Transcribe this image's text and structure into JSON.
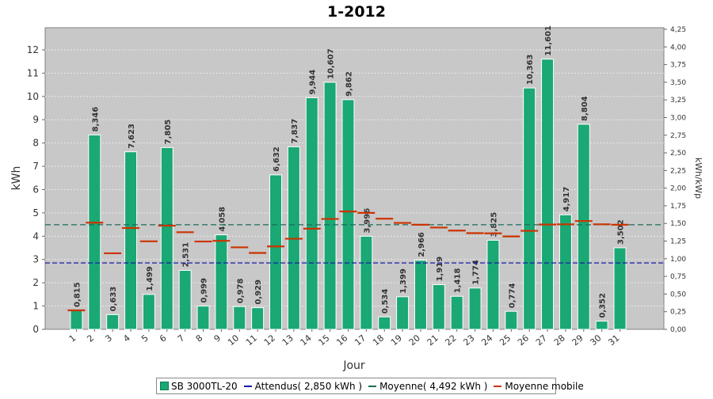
{
  "chart_data": {
    "type": "bar",
    "title": "1-2012",
    "xlabel": "Jour",
    "ylabel": "kWh",
    "y2label": "kWh/kWp",
    "categories": [
      "1",
      "2",
      "3",
      "4",
      "5",
      "6",
      "7",
      "8",
      "9",
      "10",
      "11",
      "12",
      "13",
      "14",
      "15",
      "16",
      "17",
      "18",
      "19",
      "20",
      "21",
      "22",
      "23",
      "24",
      "25",
      "26",
      "27",
      "28",
      "29",
      "30",
      "31"
    ],
    "series": [
      {
        "name": "SB 3000TL-20",
        "kind": "bar",
        "values": [
          0.815,
          8.346,
          0.633,
          7.623,
          1.499,
          7.805,
          2.531,
          0.999,
          4.058,
          0.978,
          0.929,
          6.632,
          7.837,
          9.944,
          10.607,
          9.862,
          3.996,
          0.534,
          1.399,
          2.966,
          1.919,
          1.418,
          1.774,
          3.825,
          0.774,
          10.363,
          11.601,
          4.917,
          8.804,
          0.352,
          3.502
        ],
        "labels": [
          "0,815",
          "8,346",
          "0,633",
          "7,623",
          "1,499",
          "7,805",
          "2,531",
          "0,999",
          "4,058",
          "0,978",
          "0,929",
          "6,632",
          "7,837",
          "9,944",
          "10,607",
          "9,862",
          "3,996",
          "0,534",
          "1,399",
          "2,966",
          "1,919",
          "1,418",
          "1,774",
          "3,825",
          "0,774",
          "10,363",
          "11,601",
          "4,917",
          "8,804",
          "0,352",
          "3,502"
        ],
        "color": "#1aa874"
      },
      {
        "name": "Attendus( 2,850 kWh )",
        "kind": "hline",
        "value": 2.85,
        "color": "#1a1aa8"
      },
      {
        "name": "Moyenne( 4,492 kWh )",
        "kind": "hline",
        "value": 4.492,
        "color": "#1a6b5a"
      },
      {
        "name": "Moyenne mobile",
        "kind": "marker",
        "values": [
          0.815,
          4.58,
          3.265,
          4.35,
          3.78,
          4.45,
          4.17,
          3.77,
          3.8,
          3.52,
          3.28,
          3.56,
          3.89,
          4.32,
          4.74,
          5.06,
          5.0,
          4.75,
          4.57,
          4.49,
          4.37,
          4.24,
          4.13,
          4.12,
          3.99,
          4.23,
          4.5,
          4.51,
          4.65,
          4.51,
          4.49
        ],
        "color": "#cc3300"
      }
    ],
    "ylim": [
      0,
      13
    ],
    "yticks": [
      "0",
      "1",
      "2",
      "3",
      "4",
      "5",
      "6",
      "7",
      "8",
      "9",
      "10",
      "11",
      "12"
    ],
    "y2ticks": [
      "0,00",
      "0,25",
      "0,50",
      "0,75",
      "1,00",
      "1,25",
      "1,50",
      "1,75",
      "2,00",
      "2,25",
      "2,50",
      "2,75",
      "3,00",
      "3,25",
      "3,50",
      "3,75",
      "4,00",
      "4,25"
    ],
    "grid": true,
    "legend_position": "bottom"
  },
  "legend": [
    {
      "label": "SB 3000TL-20",
      "type": "bar",
      "color": "#1aa874"
    },
    {
      "label": "Attendus( 2,850 kWh )",
      "type": "line",
      "color": "#1a1aa8"
    },
    {
      "label": "Moyenne( 4,492 kWh )",
      "type": "line",
      "color": "#1a6b5a"
    },
    {
      "label": "Moyenne mobile",
      "type": "line",
      "color": "#cc3300"
    }
  ]
}
